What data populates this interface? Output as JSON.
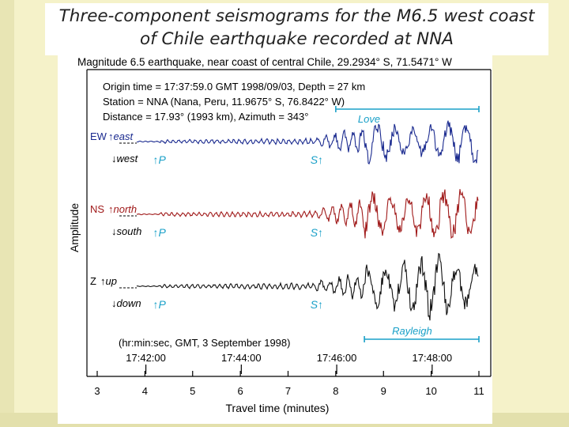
{
  "slide_title": {
    "line1": "Three-component seismograms for the M6.5 west coast",
    "line2": "of Chile earthquake recorded at NNA"
  },
  "chart_data": {
    "type": "line",
    "title": "Magnitude 6.5 earthquake, near coast of central Chile, 29.2934° S, 71.5471° W",
    "info": [
      "Origin time = 17:37:59.0 GMT 1998/09/03, Depth = 27 km",
      "Station = NNA (Nana, Peru, 11.9675° S, 76.8422° W)",
      "Distance = 17.93° (1993 km), Azimuth = 343°"
    ],
    "xlabel": "Travel time (minutes)",
    "ylabel": "Amplitude",
    "xlim": [
      3,
      11
    ],
    "x_ticks": [
      "3",
      "4",
      "5",
      "6",
      "7",
      "8",
      "9",
      "10",
      "11"
    ],
    "time_axis": {
      "label": "(hr:min:sec, GMT, 3 September 1998)",
      "ticks": [
        "17:42:00",
        "17:44:00",
        "17:46:00",
        "17:48:00"
      ],
      "tick_minutes": [
        4.02,
        6.02,
        8.02,
        10.02
      ]
    },
    "wave_windows": [
      {
        "name": "Love",
        "start": 8.0,
        "end": 11.0
      },
      {
        "name": "Rayleigh",
        "start": 8.6,
        "end": 11.0
      }
    ],
    "series": [
      {
        "name": "EW",
        "up": "east",
        "down": "west",
        "color": "#1a2a8f",
        "phases": [
          {
            "name": "P",
            "minute": 4.3
          },
          {
            "name": "S",
            "minute": 7.6
          }
        ]
      },
      {
        "name": "NS",
        "up": "north",
        "down": "south",
        "color": "#a01a1a",
        "phases": [
          {
            "name": "P",
            "minute": 4.3
          },
          {
            "name": "S",
            "minute": 7.6
          }
        ]
      },
      {
        "name": "Z",
        "up": "up",
        "down": "down",
        "color": "#111111",
        "phases": [
          {
            "name": "P",
            "minute": 4.3
          },
          {
            "name": "S",
            "minute": 7.6
          }
        ]
      }
    ],
    "grid": false,
    "colors": {
      "annotation": "#1aa0c8",
      "axis": "#000000"
    }
  }
}
